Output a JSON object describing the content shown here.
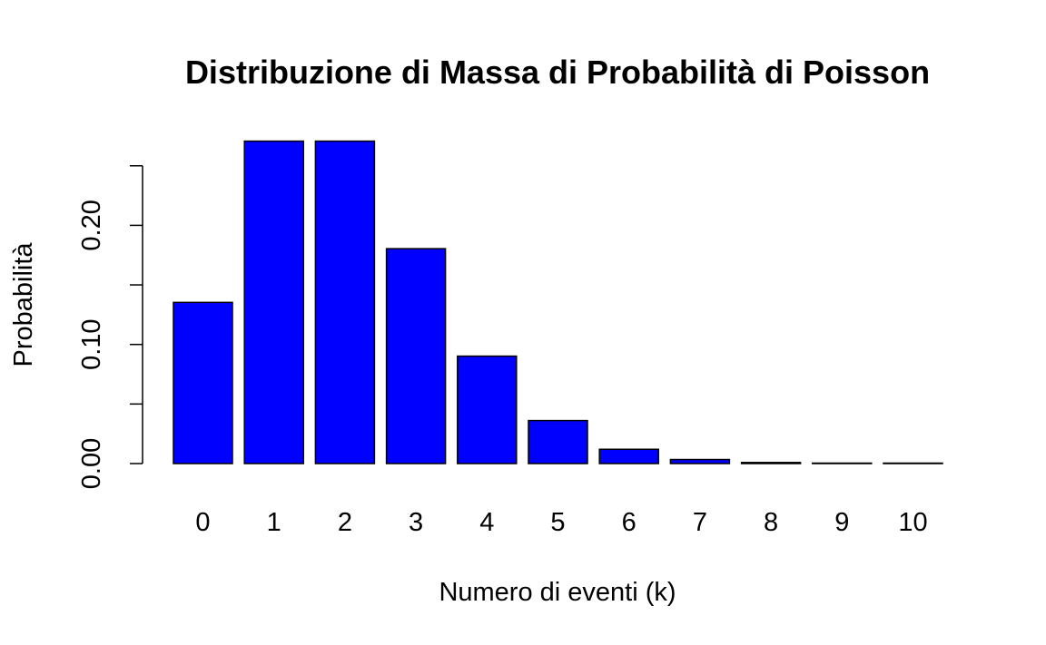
{
  "chart_data": {
    "type": "bar",
    "title": "Distribuzione di Massa di Probabilità di Poisson",
    "xlabel": "Numero di eventi (k)",
    "ylabel": "Probabilità",
    "categories": [
      "0",
      "1",
      "2",
      "3",
      "4",
      "5",
      "6",
      "7",
      "8",
      "9",
      "10"
    ],
    "values": [
      0.1353,
      0.2707,
      0.2707,
      0.1804,
      0.0902,
      0.0361,
      0.012,
      0.0034,
      0.0009,
      0.0002,
      4e-05
    ],
    "ylim": [
      0,
      0.25
    ],
    "yticks": [
      0,
      0.05,
      0.1,
      0.15,
      0.2,
      0.25
    ],
    "ytick_labels": [
      "0.00",
      "",
      "0.10",
      "",
      "0.20",
      ""
    ],
    "bar_color": "#0000ff",
    "grid": false,
    "legend": "none"
  }
}
